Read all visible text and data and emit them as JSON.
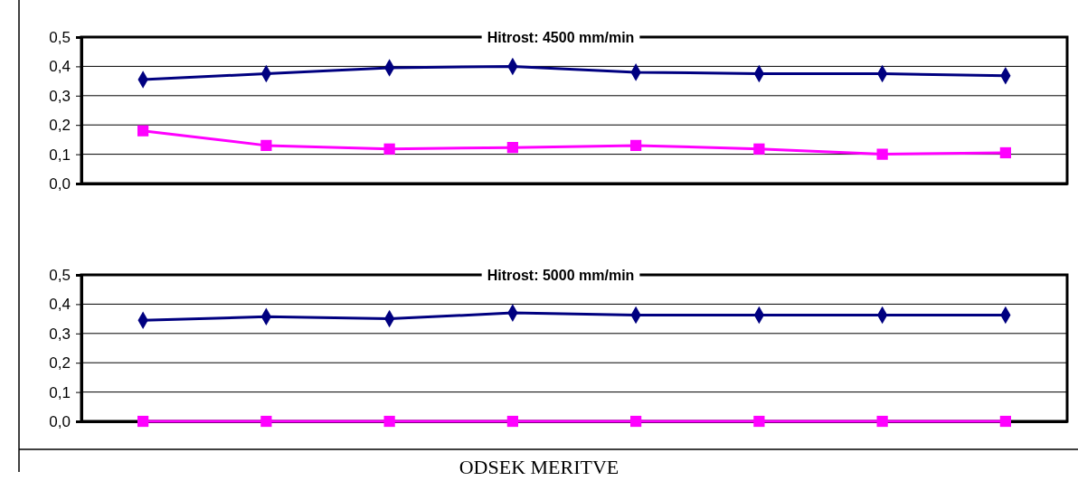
{
  "chart_data": [
    {
      "type": "line",
      "title": "Hitrost: 4500 mm/min",
      "categories": [
        null,
        null,
        null,
        null,
        null,
        null,
        null,
        null
      ],
      "series": [
        {
          "color": "#000080",
          "marker": "diamond",
          "values": [
            0.355,
            0.375,
            0.395,
            0.4,
            0.38,
            0.375,
            0.375,
            0.368
          ]
        },
        {
          "color": "#ff00ff",
          "marker": "square",
          "values": [
            0.18,
            0.13,
            0.118,
            0.123,
            0.13,
            0.118,
            0.1,
            0.105
          ]
        }
      ],
      "ylim": [
        0,
        0.5
      ],
      "yticks": [
        {
          "value": 0,
          "label": "0,0"
        },
        {
          "value": 0.1,
          "label": "0,1"
        },
        {
          "value": 0.2,
          "label": "0,2"
        },
        {
          "value": 0.3,
          "label": "0,3"
        },
        {
          "value": 0.4,
          "label": "0,4"
        },
        {
          "value": 0.5,
          "label": "0,5"
        }
      ],
      "grid": "y"
    },
    {
      "type": "line",
      "title": "Hitrost: 5000 mm/min",
      "xlabel": "ODSEK MERITVE",
      "categories": [
        null,
        null,
        null,
        null,
        null,
        null,
        null,
        null
      ],
      "series": [
        {
          "color": "#000080",
          "marker": "diamond",
          "values": [
            0.345,
            0.357,
            0.35,
            0.37,
            0.363,
            0.363,
            0.363,
            0.363
          ]
        },
        {
          "color": "#ff00ff",
          "marker": "square",
          "values": [
            0,
            0,
            0,
            0,
            0,
            0,
            0,
            0
          ]
        }
      ],
      "ylim": [
        0,
        0.5
      ],
      "yticks": [
        {
          "value": 0,
          "label": "0,0"
        },
        {
          "value": 0.1,
          "label": "0,1"
        },
        {
          "value": 0.2,
          "label": "0,2"
        },
        {
          "value": 0.3,
          "label": "0,3"
        },
        {
          "value": 0.4,
          "label": "0,4"
        },
        {
          "value": 0.5,
          "label": "0,5"
        }
      ],
      "grid": "y"
    }
  ]
}
